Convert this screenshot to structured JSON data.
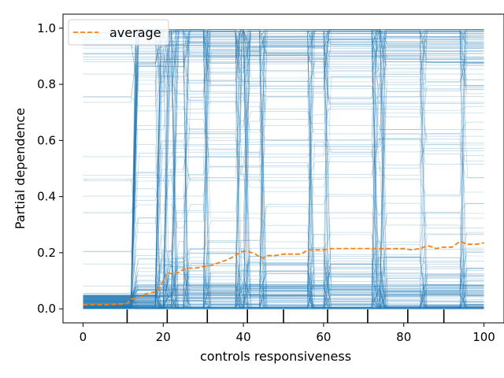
{
  "chart_data": {
    "type": "line",
    "title": "",
    "xlabel": "controls responsiveness",
    "ylabel": "Partial dependence",
    "xlim": [
      -5,
      105
    ],
    "ylim": [
      -0.05,
      1.05
    ],
    "xticks": [
      0,
      20,
      40,
      60,
      80,
      100
    ],
    "yticks": [
      0.0,
      0.2,
      0.4,
      0.6,
      0.8,
      1.0
    ],
    "xtick_labels": [
      "0",
      "20",
      "40",
      "60",
      "80",
      "100"
    ],
    "ytick_labels": [
      "0.0",
      "0.2",
      "0.4",
      "0.6",
      "0.8",
      "1.0"
    ],
    "grid": false,
    "legend_position": "top-left",
    "ice_color": "#1f77b4",
    "average_color": "#ff7f0e",
    "ice_lines_description": "Many individual conditional expectation curves across x = 0..100, spanning y = 0 to 1, with jumps concentrated near x = 12, 20, 40, 56, 72 and 94",
    "rug_x": [
      11,
      21,
      31,
      41,
      50,
      61,
      71,
      81,
      90
    ],
    "series": [
      {
        "name": "average",
        "style": "dashed",
        "x": [
          0,
          2,
          4,
          6,
          8,
          10,
          11,
          12,
          14,
          16,
          18,
          19,
          20,
          21,
          22,
          24,
          25,
          26,
          28,
          30,
          32,
          34,
          36,
          38,
          39,
          40,
          41,
          42,
          43,
          44,
          45,
          46,
          48,
          50,
          52,
          54,
          55,
          56,
          58,
          60,
          62,
          64,
          66,
          68,
          70,
          72,
          74,
          76,
          78,
          80,
          82,
          84,
          86,
          88,
          90,
          92,
          94,
          96,
          98,
          100
        ],
        "y": [
          0.015,
          0.015,
          0.015,
          0.015,
          0.016,
          0.018,
          0.02,
          0.035,
          0.04,
          0.055,
          0.06,
          0.075,
          0.1,
          0.13,
          0.125,
          0.13,
          0.14,
          0.145,
          0.145,
          0.15,
          0.155,
          0.165,
          0.175,
          0.19,
          0.2,
          0.205,
          0.205,
          0.2,
          0.195,
          0.185,
          0.18,
          0.19,
          0.19,
          0.195,
          0.195,
          0.195,
          0.2,
          0.21,
          0.21,
          0.21,
          0.215,
          0.215,
          0.215,
          0.215,
          0.215,
          0.215,
          0.215,
          0.215,
          0.215,
          0.215,
          0.21,
          0.215,
          0.225,
          0.215,
          0.22,
          0.22,
          0.24,
          0.23,
          0.23,
          0.235
        ]
      }
    ]
  }
}
